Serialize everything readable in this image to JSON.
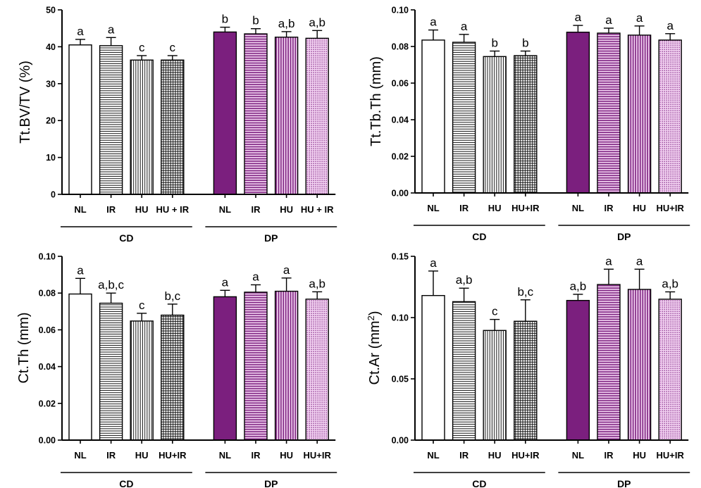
{
  "chart_data": [
    {
      "type": "bar",
      "ylabel": "Tt.BV/TV (%)",
      "ylabel_sup": "",
      "ylabel_end": "",
      "ylim": [
        0,
        50
      ],
      "yticks": [
        "0",
        "10",
        "20",
        "30",
        "40",
        "50"
      ],
      "categories": [
        "NL",
        "IR",
        "HU",
        "HU + IR",
        "NL",
        "IR",
        "HU",
        "HU + IR"
      ],
      "groups": [
        {
          "name": "CD",
          "members": [
            0,
            1,
            2,
            3
          ]
        },
        {
          "name": "DP",
          "members": [
            4,
            5,
            6,
            7
          ]
        }
      ],
      "values": [
        40.5,
        40.3,
        36.4,
        36.4,
        44.0,
        43.5,
        42.6,
        42.3
      ],
      "errors": [
        1.5,
        2.2,
        1.2,
        1.2,
        1.3,
        1.4,
        1.5,
        2.1
      ],
      "significance": [
        "a",
        "a",
        "c",
        "c",
        "b",
        "b",
        "a,b",
        "a,b"
      ],
      "grid": false,
      "legend": "none"
    },
    {
      "type": "bar",
      "ylabel": "Tt.Tb.Th (mm)",
      "ylabel_sup": "",
      "ylabel_end": "",
      "ylim": [
        0,
        0.1
      ],
      "yticks": [
        "0.00",
        "0.02",
        "0.04",
        "0.06",
        "0.08",
        "0.10"
      ],
      "categories": [
        "NL",
        "IR",
        "HU",
        "HU+IR",
        "NL",
        "IR",
        "HU",
        "HU+IR"
      ],
      "groups": [
        {
          "name": "CD",
          "members": [
            0,
            1,
            2,
            3
          ]
        },
        {
          "name": "DP",
          "members": [
            4,
            5,
            6,
            7
          ]
        }
      ],
      "values": [
        0.0835,
        0.0823,
        0.0745,
        0.075,
        0.0878,
        0.0873,
        0.0862,
        0.0835
      ],
      "errors": [
        0.0055,
        0.0043,
        0.003,
        0.0025,
        0.0037,
        0.0027,
        0.005,
        0.0035
      ],
      "significance": [
        "a",
        "a",
        "b",
        "b",
        "a",
        "a",
        "a",
        "a"
      ],
      "grid": false,
      "legend": "none"
    },
    {
      "type": "bar",
      "ylabel": "Ct.Th (mm)",
      "ylabel_sup": "",
      "ylabel_end": "",
      "ylim": [
        0,
        0.1
      ],
      "yticks": [
        "0.00",
        "0.02",
        "0.04",
        "0.06",
        "0.08",
        "0.10"
      ],
      "categories": [
        "NL",
        "IR",
        "HU",
        "HU+IR",
        "NL",
        "IR",
        "HU",
        "HU+IR"
      ],
      "groups": [
        {
          "name": "CD",
          "members": [
            0,
            1,
            2,
            3
          ]
        },
        {
          "name": "DP",
          "members": [
            4,
            5,
            6,
            7
          ]
        }
      ],
      "values": [
        0.0795,
        0.0745,
        0.0648,
        0.068,
        0.078,
        0.0805,
        0.081,
        0.0767
      ],
      "errors": [
        0.0085,
        0.0055,
        0.0042,
        0.006,
        0.0035,
        0.004,
        0.0072,
        0.004
      ],
      "significance": [
        "a",
        "a,b,c",
        "c",
        "b,c",
        "a",
        "a",
        "a",
        "a,b"
      ],
      "grid": false,
      "legend": "none"
    },
    {
      "type": "bar",
      "ylabel": "Ct.Ar (mm",
      "ylabel_sup": "2",
      "ylabel_end": ")",
      "ylim": [
        0,
        0.15
      ],
      "yticks": [
        "0.00",
        "0.05",
        "0.10",
        "0.15"
      ],
      "categories": [
        "NL",
        "IR",
        "HU",
        "HU+IR",
        "NL",
        "IR",
        "HU",
        "HU+IR"
      ],
      "groups": [
        {
          "name": "CD",
          "members": [
            0,
            1,
            2,
            3
          ]
        },
        {
          "name": "DP",
          "members": [
            4,
            5,
            6,
            7
          ]
        }
      ],
      "values": [
        0.118,
        0.113,
        0.0895,
        0.097,
        0.114,
        0.127,
        0.123,
        0.115
      ],
      "errors": [
        0.02,
        0.011,
        0.009,
        0.0175,
        0.005,
        0.0125,
        0.0165,
        0.006
      ],
      "significance": [
        "a",
        "a,b",
        "c",
        "b,c",
        "a,b",
        "a",
        "a",
        "a,b"
      ],
      "grid": false,
      "legend": "none"
    }
  ],
  "colors": {
    "cd_fill": "#ffffff",
    "dp_fill": "#7b1f7e",
    "dp_pattern_bg": "#f3d3f2",
    "ink": "#000000"
  },
  "bar_patterns": [
    "solid-white",
    "horizontal-lines",
    "vertical-lines",
    "crosshatch",
    "solid-purple",
    "horizontal-lines-purple",
    "vertical-lines-purple",
    "dots-purple"
  ]
}
